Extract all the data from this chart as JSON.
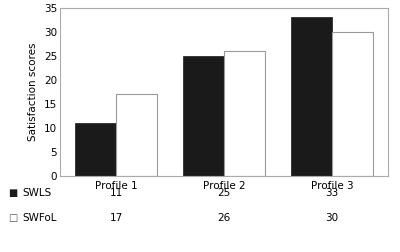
{
  "categories": [
    "Profile 1",
    "Profile 2",
    "Profile 3"
  ],
  "swls_values": [
    11,
    25,
    33
  ],
  "swfol_values": [
    17,
    26,
    30
  ],
  "swls_color": "#1a1a1a",
  "swfol_color": "#ffffff",
  "swfol_edgecolor": "#999999",
  "ylabel": "Satisfaction scores",
  "ylim": [
    0,
    35
  ],
  "yticks": [
    0,
    5,
    10,
    15,
    20,
    25,
    30,
    35
  ],
  "legend_labels": [
    "SWLS",
    "SWFoL"
  ],
  "table_swls": [
    11,
    25,
    33
  ],
  "table_swfol": [
    17,
    26,
    30
  ],
  "bar_width": 0.38,
  "spine_color": "#aaaaaa"
}
